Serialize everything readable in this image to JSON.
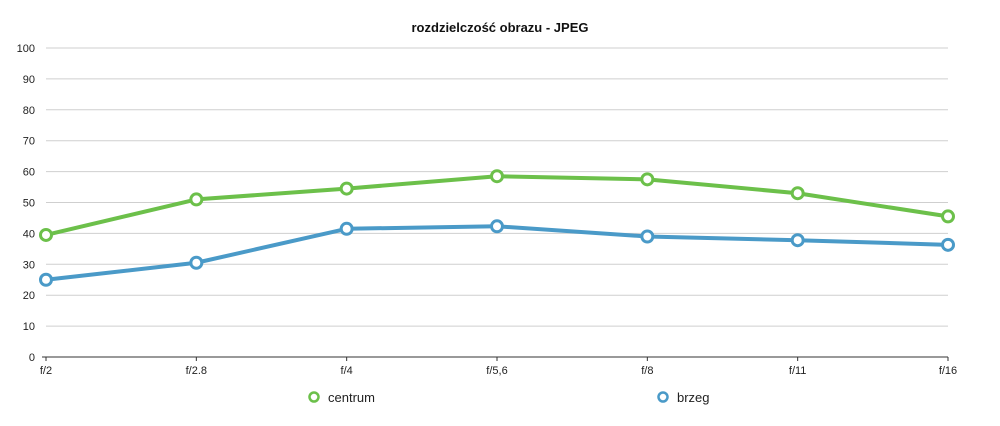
{
  "chart_data": {
    "type": "line",
    "title": "rozdzielczość obrazu - JPEG",
    "xlabel": "",
    "ylabel": "",
    "categories": [
      "f/2",
      "f/2.8",
      "f/4",
      "f/5,6",
      "f/8",
      "f/11",
      "f/16"
    ],
    "ylim": [
      0,
      100
    ],
    "yticks": [
      "0",
      "10",
      "20",
      "30",
      "40",
      "50",
      "60",
      "70",
      "80",
      "90",
      "100"
    ],
    "grid": true,
    "legend_position": "bottom",
    "series": [
      {
        "name": "centrum",
        "color": "#6cc04a",
        "values": [
          39.5,
          51,
          54.5,
          58.5,
          57.5,
          53,
          45.5
        ]
      },
      {
        "name": "brzeg",
        "color": "#4a9ac8",
        "values": [
          25,
          30.5,
          41.5,
          42.3,
          39,
          37.8,
          36.3
        ]
      }
    ]
  }
}
